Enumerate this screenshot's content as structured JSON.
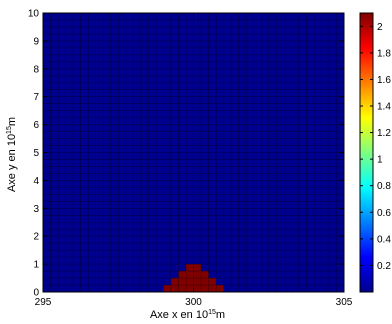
{
  "chart_data": {
    "type": "heatmap",
    "title": "",
    "xlabel": "Axe x en 10",
    "xlabel_exp": "15",
    "xlabel_unit": "m",
    "ylabel": "Axe y en 10",
    "ylabel_exp": "15",
    "ylabel_unit": "m",
    "xlim": [
      295,
      305
    ],
    "ylim": [
      0,
      10
    ],
    "x_ticks": [
      "295",
      "300",
      "305"
    ],
    "x_tick_values": [
      295,
      300,
      305
    ],
    "y_ticks": [
      "0",
      "1",
      "2",
      "3",
      "4",
      "5",
      "6",
      "7",
      "8",
      "9",
      "10"
    ],
    "y_tick_values": [
      0,
      1,
      2,
      3,
      4,
      5,
      6,
      7,
      8,
      9,
      10
    ],
    "grid": true,
    "cell_size": 0.25,
    "background_value": 0,
    "background_color": "#00008F",
    "hot_cells": [
      {
        "y": 0.0,
        "x_values": [
          299.0,
          299.25,
          299.5,
          299.75,
          300.0,
          300.25,
          300.5,
          300.75
        ],
        "value": 2.1
      },
      {
        "y": 0.25,
        "x_values": [
          299.25,
          299.5,
          299.75,
          300.0,
          300.25,
          300.5
        ],
        "value": 2.1
      },
      {
        "y": 0.5,
        "x_values": [
          299.5,
          299.75,
          300.0,
          300.25
        ],
        "value": 2.1
      },
      {
        "y": 0.75,
        "x_values": [
          299.75,
          300.0
        ],
        "value": 2.1
      }
    ],
    "hot_color": "#800000",
    "colorbar": {
      "range": [
        0,
        2.1
      ],
      "ticks": [
        "0.2",
        "0.4",
        "0.6",
        "0.8",
        "1",
        "1.2",
        "1.4",
        "1.6",
        "1.8",
        "2"
      ],
      "tick_values": [
        0.2,
        0.4,
        0.6,
        0.8,
        1.0,
        1.2,
        1.4,
        1.6,
        1.8,
        2.0
      ],
      "colormap": "jet"
    }
  }
}
